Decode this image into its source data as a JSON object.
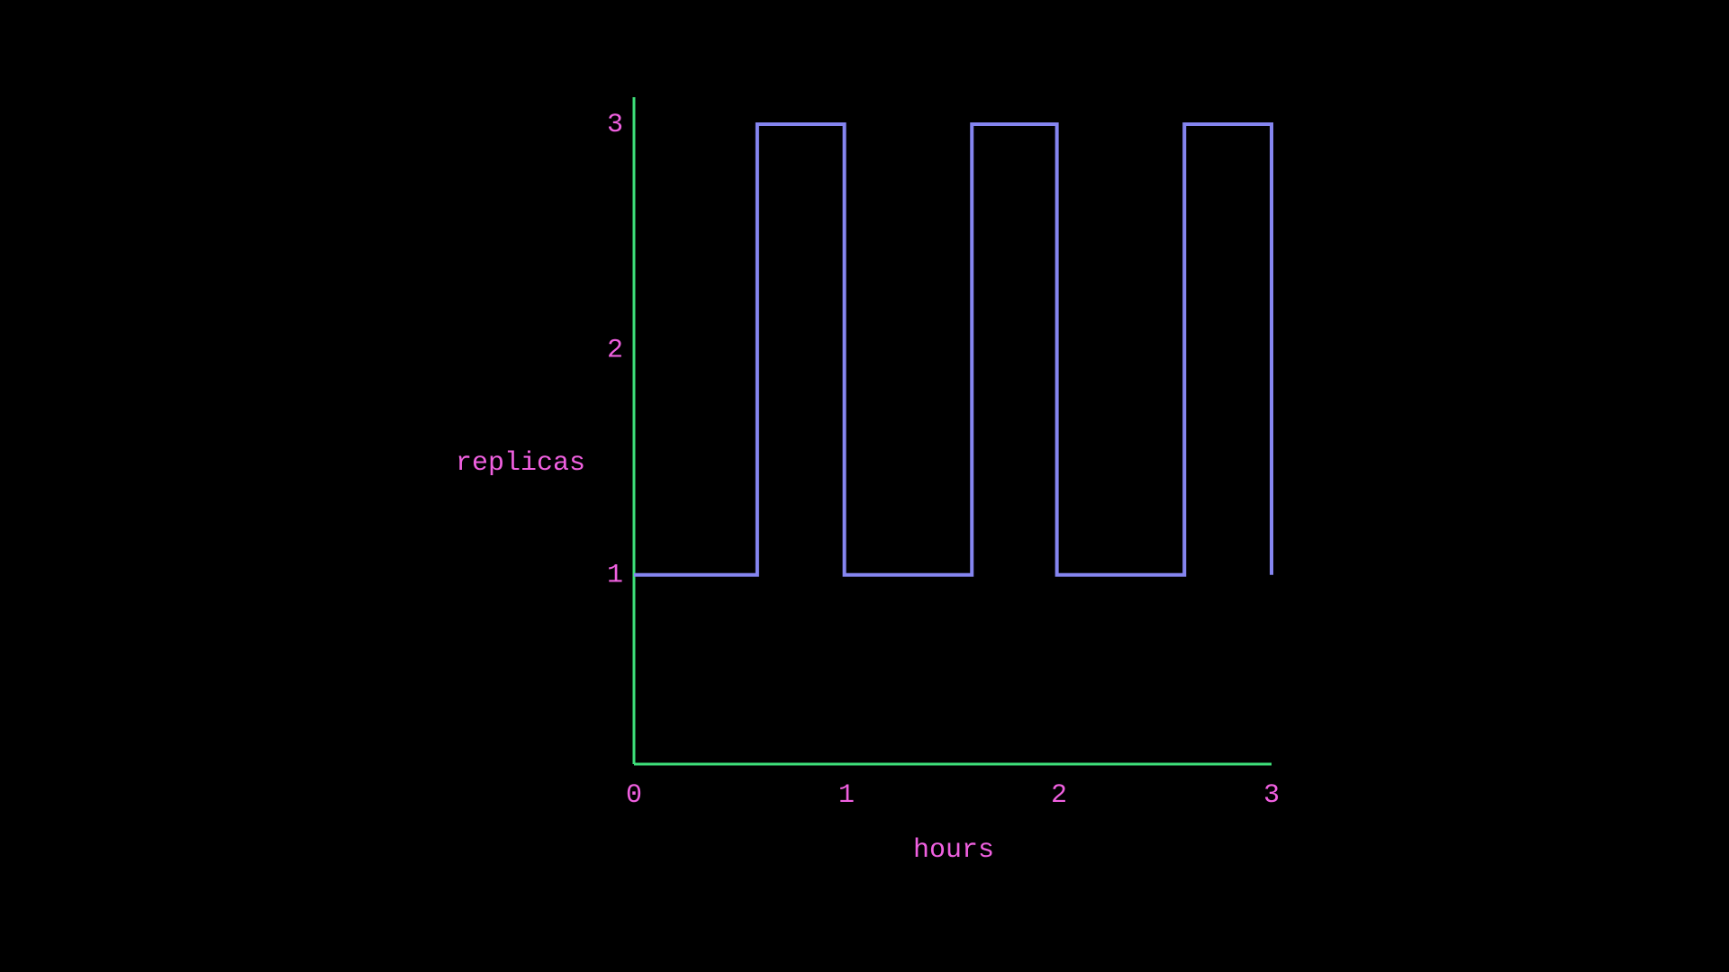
{
  "chart_data": {
    "type": "line",
    "x_label": "hours",
    "y_label": "replicas",
    "x": [
      0,
      0.58,
      0.58,
      0.99,
      0.99,
      1.59,
      1.59,
      1.99,
      1.99,
      2.59,
      2.59,
      3,
      3
    ],
    "series": [
      {
        "name": "replicas",
        "color": "#8585f0",
        "values": [
          1,
          1,
          3,
          3,
          1,
          1,
          3,
          3,
          1,
          1,
          3,
          3,
          1
        ]
      }
    ],
    "xlim": [
      0,
      3
    ],
    "xticks": [
      0,
      1,
      2,
      3
    ],
    "ylim": [
      0.16,
      3.12
    ],
    "yticks": [
      1,
      2,
      3
    ],
    "grid": false,
    "axis_color": "#3ee07a",
    "text_color": "#f060e0"
  }
}
